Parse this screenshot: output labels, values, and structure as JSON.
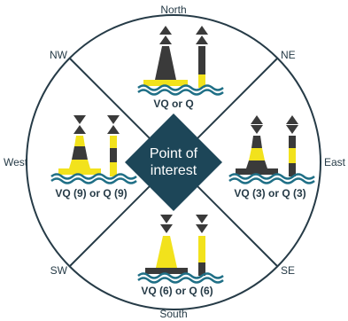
{
  "colors": {
    "navy": "#263b47",
    "yellow": "#f2e21c",
    "black": "#3a3a3a",
    "water": "#1f6f86",
    "diamond": "#1d4658"
  },
  "directions": {
    "north": "North",
    "ne": "NE",
    "east": "East",
    "se": "SE",
    "south": "South",
    "sw": "SW",
    "west": "West",
    "nw": "NW"
  },
  "center": {
    "line1": "Point of",
    "line2": "interest"
  },
  "buoys": {
    "north": {
      "light": "VQ or Q",
      "topmark": "cones-up"
    },
    "east": {
      "light": "VQ (3) or Q (3)",
      "topmark": "cones-base-to-base"
    },
    "south": {
      "light": "VQ (6) or Q (6)",
      "topmark": "cones-down"
    },
    "west": {
      "light": "VQ (9) or Q (9)",
      "topmark": "cones-point-to-point"
    }
  }
}
